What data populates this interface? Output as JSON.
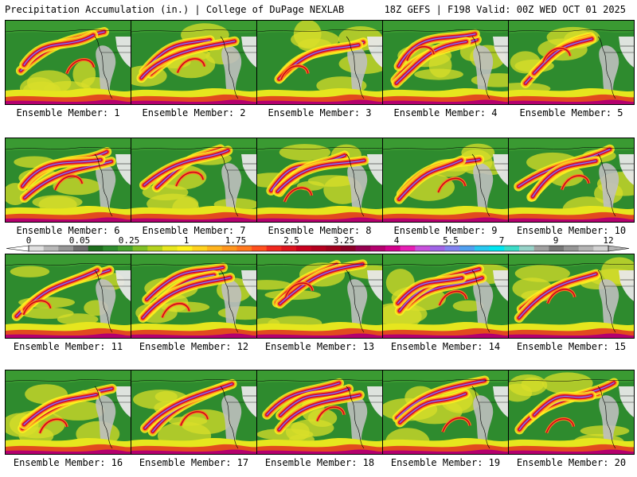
{
  "header": {
    "left_title": "Precipitation Accumulation (in.) | College of DuPage NEXLAB",
    "right_title": "18Z GEFS | F198 Valid: 00Z WED OCT 01 2025"
  },
  "panels": [
    {
      "caption": "Ensemble Member: 1"
    },
    {
      "caption": "Ensemble Member: 2"
    },
    {
      "caption": "Ensemble Member: 3"
    },
    {
      "caption": "Ensemble Member: 4"
    },
    {
      "caption": "Ensemble Member: 5"
    },
    {
      "caption": "Ensemble Member: 6"
    },
    {
      "caption": "Ensemble Member: 7"
    },
    {
      "caption": "Ensemble Member: 8"
    },
    {
      "caption": "Ensemble Member: 9"
    },
    {
      "caption": "Ensemble Member: 10"
    },
    {
      "caption": "Ensemble Member: 11"
    },
    {
      "caption": "Ensemble Member: 12"
    },
    {
      "caption": "Ensemble Member: 13"
    },
    {
      "caption": "Ensemble Member: 14"
    },
    {
      "caption": "Ensemble Member: 15"
    },
    {
      "caption": "Ensemble Member: 16"
    },
    {
      "caption": "Ensemble Member: 17"
    },
    {
      "caption": "Ensemble Member: 18"
    },
    {
      "caption": "Ensemble Member: 19"
    },
    {
      "caption": "Ensemble Member: 20"
    }
  ],
  "colorbar": {
    "tick_labels": [
      "0",
      "0.05",
      "0.25",
      "1",
      "1.75",
      "2.5",
      "3.25",
      "4",
      "5.5",
      "7",
      "9",
      "12"
    ],
    "colors": [
      "#e0e0e0",
      "#b8b8b8",
      "#969696",
      "#6e6e6e",
      "#1e6e1e",
      "#2e8b2e",
      "#46a22e",
      "#7fbf26",
      "#b4d21e",
      "#e6e61e",
      "#fff01e",
      "#ffd21e",
      "#ffb41e",
      "#ff961e",
      "#ff781e",
      "#ff501e",
      "#f0281e",
      "#dc141e",
      "#c8001e",
      "#b4001e",
      "#a0001e",
      "#8c0028",
      "#960050",
      "#b4006e",
      "#d2008c",
      "#e61eb4",
      "#c850dc",
      "#a064e6",
      "#8282f0",
      "#50a0f0",
      "#28c8f0",
      "#00e6f0",
      "#3cdcc8",
      "#96d2c8",
      "#a0a0a0",
      "#787878",
      "#969696",
      "#b4b4b4",
      "#d2d2d2"
    ]
  }
}
